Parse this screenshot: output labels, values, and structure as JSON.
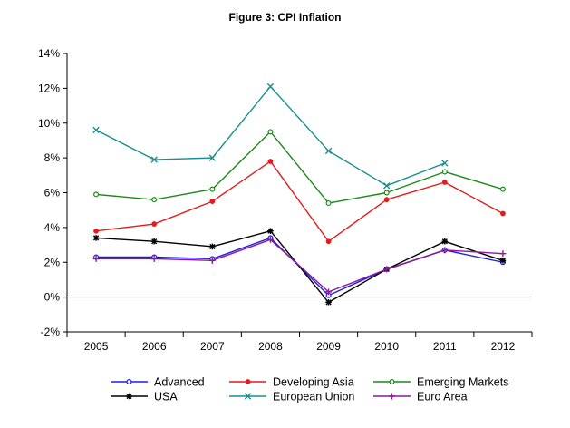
{
  "chart_data": {
    "type": "line",
    "title": "Figure 3: CPI Inflation",
    "xlabel": "",
    "ylabel": "",
    "categories": [
      "2005",
      "2006",
      "2007",
      "2008",
      "2009",
      "2010",
      "2011",
      "2012"
    ],
    "ylim": [
      -2,
      14
    ],
    "yticks": [
      -2,
      0,
      2,
      4,
      6,
      8,
      10,
      12,
      14
    ],
    "ytick_labels": [
      "-2%",
      "0%",
      "2%",
      "4%",
      "6%",
      "8%",
      "10%",
      "12%",
      "14%"
    ],
    "grid": false,
    "legend_position": "bottom",
    "series": [
      {
        "name": "Advanced",
        "color": "#1f1fe0",
        "marker": "open-circle",
        "values": [
          2.3,
          2.3,
          2.2,
          3.4,
          0.1,
          1.6,
          2.7,
          2.0
        ]
      },
      {
        "name": "Developing Asia",
        "color": "#e41a1c",
        "marker": "filled-circle",
        "values": [
          3.8,
          4.2,
          5.5,
          7.8,
          3.2,
          5.6,
          6.6,
          4.8
        ]
      },
      {
        "name": "Emerging Markets",
        "color": "#1a8a1a",
        "marker": "open-circle",
        "values": [
          5.9,
          5.6,
          6.2,
          9.5,
          5.4,
          6.0,
          7.2,
          6.2
        ]
      },
      {
        "name": "USA",
        "color": "#000000",
        "marker": "asterisk",
        "values": [
          3.4,
          3.2,
          2.9,
          3.8,
          -0.3,
          1.6,
          3.2,
          2.1
        ]
      },
      {
        "name": "European Union",
        "color": "#1a8f8f",
        "marker": "x",
        "values": [
          9.6,
          7.9,
          8.0,
          12.1,
          8.4,
          6.4,
          7.7,
          null
        ]
      },
      {
        "name": "Euro Area",
        "color": "#8b1a9a",
        "marker": "plus",
        "values": [
          2.2,
          2.2,
          2.1,
          3.3,
          0.3,
          1.6,
          2.7,
          2.5
        ]
      }
    ]
  }
}
